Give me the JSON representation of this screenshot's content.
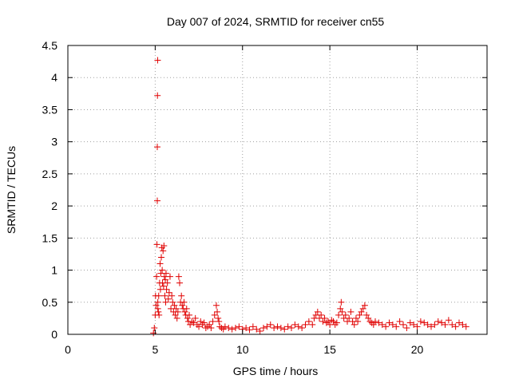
{
  "chart_data": {
    "type": "scatter",
    "title": "Day 007 of 2024, SRMTID for receiver cn55",
    "xlabel": "GPS time / hours",
    "ylabel": "SRMTID / TECUs",
    "xlim": [
      0,
      24
    ],
    "ylim": [
      0,
      4.5
    ],
    "x_ticks": [
      0,
      5,
      10,
      15,
      20
    ],
    "x_tick_labels": [
      "0",
      "5",
      "10",
      "15",
      "20"
    ],
    "y_ticks": [
      0,
      0.5,
      1,
      1.5,
      2,
      2.5,
      3,
      3.5,
      4,
      4.5
    ],
    "y_tick_labels": [
      "0",
      "0.5",
      "1",
      "1.5",
      "2",
      "2.5",
      "3",
      "3.5",
      "4",
      "4.5"
    ],
    "grid": true,
    "marker": "plus",
    "series": [
      {
        "name": "SRMTID",
        "color": "#e00000",
        "x": [
          4.9,
          4.95,
          5.0,
          5.02,
          5.05,
          5.08,
          5.1,
          5.12,
          5.12,
          5.13,
          5.14,
          5.15,
          5.15,
          5.18,
          5.2,
          5.22,
          5.25,
          5.28,
          5.3,
          5.32,
          5.35,
          5.38,
          5.4,
          5.42,
          5.45,
          5.48,
          5.5,
          5.52,
          5.55,
          5.58,
          5.6,
          5.62,
          5.65,
          5.7,
          5.75,
          5.8,
          5.85,
          5.9,
          5.95,
          6.0,
          6.05,
          6.1,
          6.15,
          6.2,
          6.25,
          6.3,
          6.35,
          6.4,
          6.45,
          6.5,
          6.55,
          6.6,
          6.65,
          6.7,
          6.75,
          6.8,
          6.85,
          6.9,
          6.95,
          7.0,
          7.1,
          7.2,
          7.3,
          7.4,
          7.5,
          7.6,
          7.7,
          7.8,
          7.9,
          8.0,
          8.1,
          8.2,
          8.3,
          8.4,
          8.5,
          8.55,
          8.6,
          8.65,
          8.7,
          8.8,
          8.9,
          9.0,
          9.2,
          9.4,
          9.6,
          9.8,
          10.0,
          10.2,
          10.4,
          10.6,
          10.8,
          11.0,
          11.2,
          11.4,
          11.6,
          11.8,
          12.0,
          12.2,
          12.4,
          12.6,
          12.8,
          13.0,
          13.2,
          13.4,
          13.6,
          13.8,
          14.0,
          14.1,
          14.2,
          14.3,
          14.4,
          14.5,
          14.6,
          14.7,
          14.8,
          14.9,
          15.0,
          15.1,
          15.2,
          15.3,
          15.4,
          15.5,
          15.6,
          15.65,
          15.7,
          15.8,
          15.9,
          16.0,
          16.1,
          16.2,
          16.3,
          16.4,
          16.5,
          16.6,
          16.7,
          16.8,
          16.9,
          17.0,
          17.1,
          17.2,
          17.3,
          17.4,
          17.5,
          17.6,
          17.8,
          18.0,
          18.2,
          18.4,
          18.6,
          18.8,
          19.0,
          19.2,
          19.4,
          19.6,
          19.8,
          20.0,
          20.2,
          20.4,
          20.6,
          20.8,
          21.0,
          21.2,
          21.4,
          21.6,
          21.8,
          22.0,
          22.2,
          22.4,
          22.6,
          22.8
        ],
        "y": [
          0.02,
          0.1,
          0.3,
          0.6,
          0.45,
          0.9,
          1.4,
          2.08,
          2.92,
          3.72,
          4.27,
          0.4,
          0.5,
          0.35,
          0.6,
          0.3,
          0.8,
          1.1,
          0.7,
          0.95,
          1.2,
          1.35,
          1.0,
          0.8,
          1.3,
          0.75,
          1.38,
          0.9,
          0.6,
          0.85,
          0.5,
          0.95,
          0.7,
          0.8,
          0.55,
          0.65,
          0.9,
          0.4,
          0.6,
          0.5,
          0.35,
          0.45,
          0.3,
          0.4,
          0.25,
          0.35,
          0.9,
          0.8,
          0.5,
          0.6,
          0.45,
          0.4,
          0.5,
          0.35,
          0.3,
          0.4,
          0.25,
          0.2,
          0.3,
          0.15,
          0.2,
          0.18,
          0.25,
          0.15,
          0.12,
          0.2,
          0.15,
          0.18,
          0.1,
          0.12,
          0.15,
          0.1,
          0.2,
          0.3,
          0.45,
          0.35,
          0.25,
          0.2,
          0.12,
          0.1,
          0.08,
          0.12,
          0.1,
          0.08,
          0.1,
          0.12,
          0.08,
          0.1,
          0.07,
          0.12,
          0.08,
          0.05,
          0.1,
          0.12,
          0.15,
          0.1,
          0.12,
          0.1,
          0.08,
          0.12,
          0.1,
          0.15,
          0.12,
          0.1,
          0.15,
          0.2,
          0.15,
          0.25,
          0.3,
          0.35,
          0.25,
          0.3,
          0.2,
          0.25,
          0.18,
          0.2,
          0.15,
          0.22,
          0.2,
          0.15,
          0.18,
          0.3,
          0.4,
          0.5,
          0.35,
          0.25,
          0.3,
          0.2,
          0.25,
          0.35,
          0.2,
          0.15,
          0.25,
          0.2,
          0.3,
          0.35,
          0.4,
          0.45,
          0.3,
          0.25,
          0.2,
          0.18,
          0.15,
          0.2,
          0.18,
          0.15,
          0.12,
          0.18,
          0.15,
          0.12,
          0.2,
          0.15,
          0.1,
          0.18,
          0.15,
          0.12,
          0.2,
          0.18,
          0.15,
          0.12,
          0.15,
          0.2,
          0.18,
          0.15,
          0.22,
          0.15,
          0.12,
          0.18,
          0.15,
          0.12
        ]
      }
    ]
  }
}
